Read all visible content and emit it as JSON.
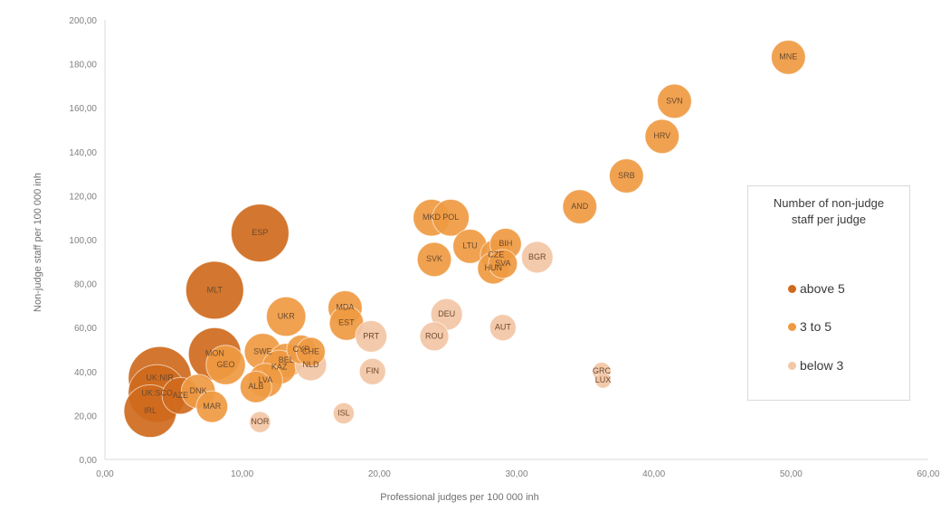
{
  "chart_data": {
    "type": "scatter",
    "xlabel": "Professional judges per 100 000 inh",
    "ylabel": "Non-judge staff per 100 000 inh",
    "xlim": [
      0,
      60
    ],
    "ylim": [
      0,
      200
    ],
    "x_ticks": [
      "0,00",
      "10,00",
      "20,00",
      "30,00",
      "40,00",
      "50,00",
      "60,00"
    ],
    "y_ticks": [
      "0,00",
      "20,00",
      "40,00",
      "60,00",
      "80,00",
      "100,00",
      "120,00",
      "140,00",
      "160,00",
      "180,00",
      "200,00"
    ],
    "grid": false,
    "legend": {
      "title_line1": "Number of non-judge",
      "title_line2": "staff per judge",
      "placement": "right",
      "items": [
        {
          "label": "above 5",
          "color": "#cf6a1d"
        },
        {
          "label": "3 to 5",
          "color": "#ef9a42"
        },
        {
          "label": "below 3",
          "color": "#f3c6a5"
        }
      ]
    },
    "points": [
      {
        "label": "ESP",
        "x": 11.3,
        "y": 103,
        "group": "above 5",
        "size": 2.2
      },
      {
        "label": "MLT",
        "x": 8.0,
        "y": 77,
        "group": "above 5",
        "size": 2.2
      },
      {
        "label": "MON",
        "x": 8.0,
        "y": 48,
        "group": "above 5",
        "size": 2.0
      },
      {
        "label": "UK:NIR",
        "x": 4.0,
        "y": 37,
        "group": "above 5",
        "size": 2.4
      },
      {
        "label": "UK:SCO",
        "x": 3.8,
        "y": 30,
        "group": "above 5",
        "size": 2.2
      },
      {
        "label": "IRL",
        "x": 3.3,
        "y": 22,
        "group": "above 5",
        "size": 2.0
      },
      {
        "label": "AZE",
        "x": 5.5,
        "y": 29,
        "group": "above 5",
        "size": 1.4
      },
      {
        "label": "UKR",
        "x": 13.2,
        "y": 65,
        "group": "3 to 5",
        "size": 1.5
      },
      {
        "label": "GEO",
        "x": 8.8,
        "y": 43,
        "group": "3 to 5",
        "size": 1.5
      },
      {
        "label": "DNK",
        "x": 6.8,
        "y": 31,
        "group": "3 to 5",
        "size": 1.3
      },
      {
        "label": "MAR",
        "x": 7.8,
        "y": 24,
        "group": "3 to 5",
        "size": 1.2
      },
      {
        "label": "SWE",
        "x": 11.5,
        "y": 49,
        "group": "3 to 5",
        "size": 1.4
      },
      {
        "label": "BEL",
        "x": 13.2,
        "y": 45,
        "group": "3 to 5",
        "size": 1.3
      },
      {
        "label": "KAZ",
        "x": 12.7,
        "y": 42,
        "group": "3 to 5",
        "size": 1.3
      },
      {
        "label": "LVA",
        "x": 11.7,
        "y": 36,
        "group": "3 to 5",
        "size": 1.3
      },
      {
        "label": "ALB",
        "x": 11.0,
        "y": 33,
        "group": "3 to 5",
        "size": 1.2
      },
      {
        "label": "CYP",
        "x": 14.3,
        "y": 50,
        "group": "3 to 5",
        "size": 1.1
      },
      {
        "label": "CHE",
        "x": 15.0,
        "y": 49,
        "group": "3 to 5",
        "size": 1.1
      },
      {
        "label": "MDA",
        "x": 17.5,
        "y": 69,
        "group": "3 to 5",
        "size": 1.3
      },
      {
        "label": "EST",
        "x": 17.6,
        "y": 62,
        "group": "3 to 5",
        "size": 1.3
      },
      {
        "label": "MKD",
        "x": 23.8,
        "y": 110,
        "group": "3 to 5",
        "size": 1.4
      },
      {
        "label": "POL",
        "x": 25.2,
        "y": 110,
        "group": "3 to 5",
        "size": 1.4
      },
      {
        "label": "LTU",
        "x": 26.6,
        "y": 97,
        "group": "3 to 5",
        "size": 1.3
      },
      {
        "label": "SVK",
        "x": 24.0,
        "y": 91,
        "group": "3 to 5",
        "size": 1.3
      },
      {
        "label": "CZE",
        "x": 28.5,
        "y": 93,
        "group": "3 to 5",
        "size": 1.2
      },
      {
        "label": "HUN",
        "x": 28.3,
        "y": 87,
        "group": "3 to 5",
        "size": 1.2
      },
      {
        "label": "BIH",
        "x": 29.2,
        "y": 98,
        "group": "3 to 5",
        "size": 1.2
      },
      {
        "label": "SVA",
        "x": 29.0,
        "y": 89,
        "group": "3 to 5",
        "size": 1.1
      },
      {
        "label": "AND",
        "x": 34.6,
        "y": 115,
        "group": "3 to 5",
        "size": 1.3
      },
      {
        "label": "SRB",
        "x": 38.0,
        "y": 129,
        "group": "3 to 5",
        "size": 1.3
      },
      {
        "label": "HRV",
        "x": 40.6,
        "y": 147,
        "group": "3 to 5",
        "size": 1.3
      },
      {
        "label": "SVN",
        "x": 41.5,
        "y": 163,
        "group": "3 to 5",
        "size": 1.3
      },
      {
        "label": "MNE",
        "x": 49.8,
        "y": 183,
        "group": "3 to 5",
        "size": 1.3
      },
      {
        "label": "NLD",
        "x": 15.0,
        "y": 43,
        "group": "below 3",
        "size": 1.2
      },
      {
        "label": "PRT",
        "x": 19.4,
        "y": 56,
        "group": "below 3",
        "size": 1.2
      },
      {
        "label": "FIN",
        "x": 19.5,
        "y": 40,
        "group": "below 3",
        "size": 1.0
      },
      {
        "label": "NOR",
        "x": 11.3,
        "y": 17,
        "group": "below 3",
        "size": 0.8
      },
      {
        "label": "ISL",
        "x": 17.4,
        "y": 21,
        "group": "below 3",
        "size": 0.8
      },
      {
        "label": "DEU",
        "x": 24.9,
        "y": 66,
        "group": "below 3",
        "size": 1.2
      },
      {
        "label": "ROU",
        "x": 24.0,
        "y": 56,
        "group": "below 3",
        "size": 1.1
      },
      {
        "label": "AUT",
        "x": 29.0,
        "y": 60,
        "group": "below 3",
        "size": 1.0
      },
      {
        "label": "BGR",
        "x": 31.5,
        "y": 92,
        "group": "below 3",
        "size": 1.2
      },
      {
        "label": "GRC",
        "x": 36.2,
        "y": 40,
        "group": "below 3",
        "size": 0.7
      },
      {
        "label": "LUX",
        "x": 36.3,
        "y": 36,
        "group": "below 3",
        "size": 0.6
      }
    ]
  }
}
